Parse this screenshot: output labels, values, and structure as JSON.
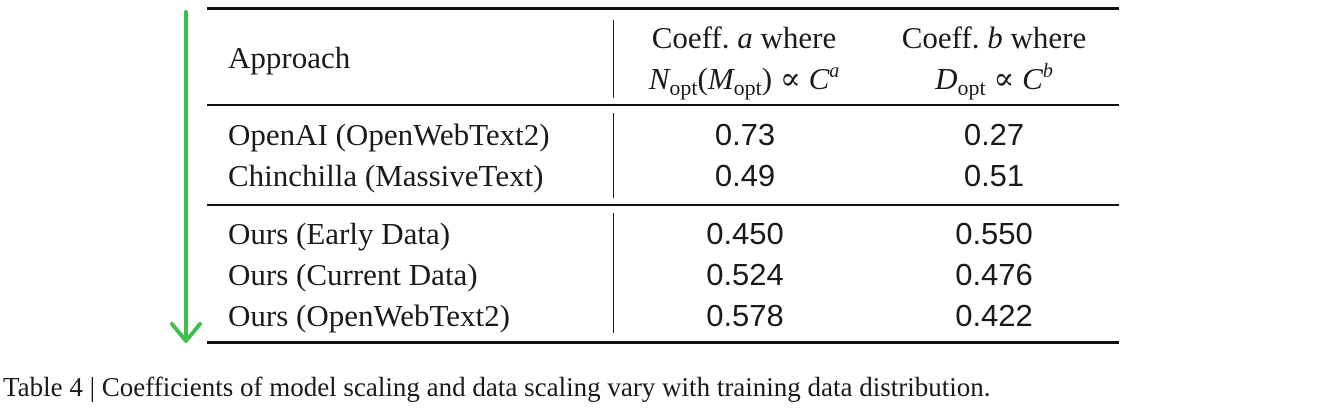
{
  "table": {
    "header": {
      "approach": "Approach",
      "colA_line1": "Coeff. a where",
      "colB_line1": "Coeff. b where"
    },
    "rows": [
      {
        "approach": "OpenAI (OpenWebText2)",
        "a": "0.73",
        "b": "0.27"
      },
      {
        "approach": "Chinchilla (MassiveText)",
        "a": "0.49",
        "b": "0.51"
      },
      {
        "approach": "Ours (Early Data)",
        "a": "0.450",
        "b": "0.550"
      },
      {
        "approach": "Ours (Current Data)",
        "a": "0.524",
        "b": "0.476"
      },
      {
        "approach": "Ours (OpenWebText2)",
        "a": "0.578",
        "b": "0.422"
      }
    ]
  },
  "caption": "Table 4 | Coefficients of model scaling and data scaling vary with training data distribution.",
  "colors": {
    "arrow": "#3cc24a",
    "rules": "#111111"
  }
}
